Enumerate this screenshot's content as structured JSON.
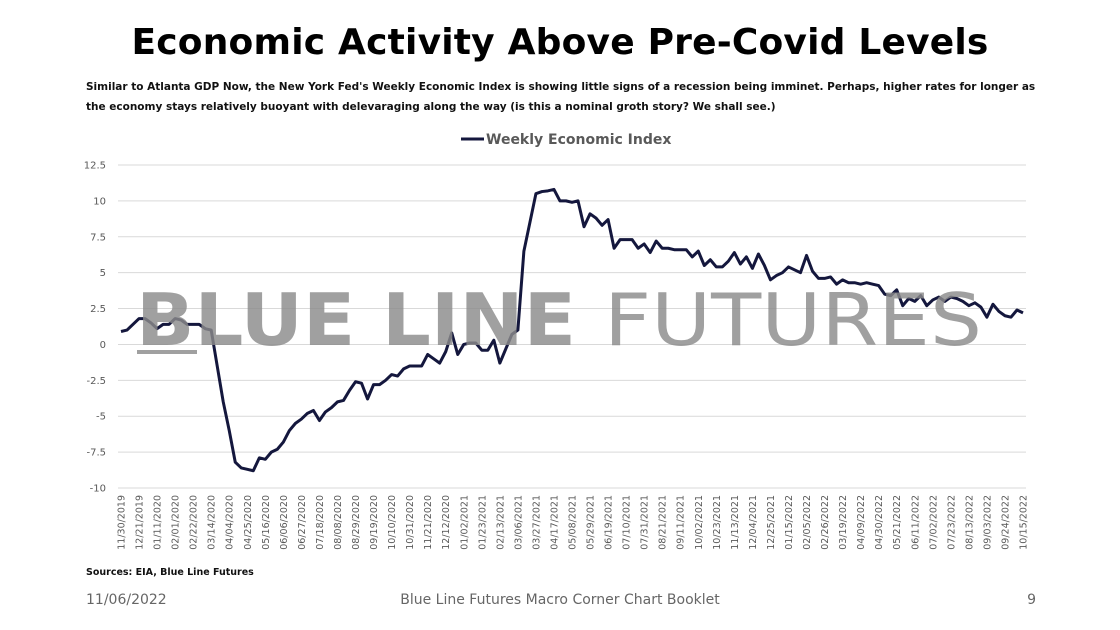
{
  "title": "Economic Activity Above Pre-Covid Levels",
  "subtitle": "Similar to Atlanta GDP Now, the New York Fed's Weekly Economic Index is showing little signs of a recession being imminet. Perhaps, higher rates for longer as the economy stays relatively buoyant with delevaraging along the way (is this a nominal groth story? We shall see.)",
  "watermark": {
    "part1": "BLUE LINE",
    "part2": "FUTURES"
  },
  "sources": "Sources: EIA, Blue Line Futures",
  "footer": {
    "date": "11/06/2022",
    "center": "Blue Line Futures Macro Corner Chart Booklet",
    "page": "9"
  },
  "colors": {
    "line": "#14173d",
    "grid": "#d9d9d9",
    "watermark": "#8c8c8c"
  },
  "chart_data": {
    "type": "line",
    "title": "",
    "xlabel": "",
    "ylabel": "",
    "ylim": [
      -10,
      12.5
    ],
    "yticks": [
      12.5,
      10,
      7.5,
      5,
      2.5,
      0,
      -2.5,
      -5,
      -7.5,
      -10
    ],
    "ytick_labels": [
      "12.5",
      "10",
      "7.5",
      "5",
      "2.5",
      "0",
      "-2.5",
      "-5",
      "-7.5",
      "-10"
    ],
    "grid": true,
    "legend_position": "top-center",
    "x_labels": [
      "11/30/2019",
      "12/21/2019",
      "01/11/2020",
      "02/01/2020",
      "02/22/2020",
      "03/14/2020",
      "04/04/2020",
      "04/25/2020",
      "05/16/2020",
      "06/06/2020",
      "06/27/2020",
      "07/18/2020",
      "08/08/2020",
      "08/29/2020",
      "09/19/2020",
      "10/10/2020",
      "10/31/2020",
      "11/21/2020",
      "12/12/2020",
      "01/02/2021",
      "01/23/2021",
      "02/13/2021",
      "03/06/2021",
      "03/27/2021",
      "04/17/2021",
      "05/08/2021",
      "05/29/2021",
      "06/19/2021",
      "07/10/2021",
      "07/31/2021",
      "08/21/2021",
      "09/11/2021",
      "10/02/2021",
      "10/23/2021",
      "11/13/2021",
      "12/04/2021",
      "12/25/2021",
      "01/15/2022",
      "02/05/2022",
      "02/26/2022",
      "03/19/2022",
      "04/09/2022",
      "04/30/2022",
      "05/21/2022",
      "06/11/2022",
      "07/02/2022",
      "07/23/2022",
      "08/13/2022",
      "09/03/2022",
      "09/24/2022",
      "10/15/2022"
    ],
    "series": [
      {
        "name": "Weekly Economic Index",
        "values": [
          0.9,
          1.0,
          1.4,
          1.8,
          1.8,
          1.5,
          1.1,
          1.4,
          1.4,
          1.8,
          1.7,
          1.4,
          1.4,
          1.4,
          1.1,
          1.0,
          -1.5,
          -4.0,
          -6.0,
          -8.2,
          -8.6,
          -8.7,
          -8.8,
          -7.9,
          -8.0,
          -7.5,
          -7.3,
          -6.8,
          -6.0,
          -5.5,
          -5.2,
          -4.8,
          -4.6,
          -5.3,
          -4.7,
          -4.4,
          -4.0,
          -3.9,
          -3.2,
          -2.6,
          -2.7,
          -3.8,
          -2.8,
          -2.8,
          -2.5,
          -2.1,
          -2.2,
          -1.7,
          -1.5,
          -1.5,
          -1.5,
          -0.7,
          -1.0,
          -1.3,
          -0.5,
          0.8,
          -0.7,
          0.0,
          0.1,
          0.1,
          -0.4,
          -0.4,
          0.3,
          -1.3,
          -0.3,
          0.7,
          1.0,
          6.5,
          8.5,
          10.5,
          10.65,
          10.7,
          10.8,
          10.0,
          10.0,
          9.9,
          10.0,
          8.2,
          9.1,
          8.8,
          8.3,
          8.7,
          6.7,
          7.3,
          7.3,
          7.3,
          6.7,
          7.0,
          6.4,
          7.2,
          6.7,
          6.7,
          6.6,
          6.6,
          6.6,
          6.1,
          6.5,
          5.5,
          5.9,
          5.4,
          5.4,
          5.8,
          6.4,
          5.6,
          6.1,
          5.3,
          6.3,
          5.5,
          4.5,
          4.8,
          5.0,
          5.4,
          5.2,
          5.0,
          6.2,
          5.1,
          4.6,
          4.6,
          4.7,
          4.2,
          4.5,
          4.3,
          4.3,
          4.2,
          4.3,
          4.2,
          4.1,
          3.5,
          3.4,
          3.8,
          2.7,
          3.2,
          3.0,
          3.4,
          2.7,
          3.1,
          3.3,
          3.0,
          3.3,
          3.2,
          3.0,
          2.7,
          2.9,
          2.6,
          1.9,
          2.8,
          2.3,
          2.0,
          1.9,
          2.4,
          2.2
        ]
      }
    ]
  }
}
